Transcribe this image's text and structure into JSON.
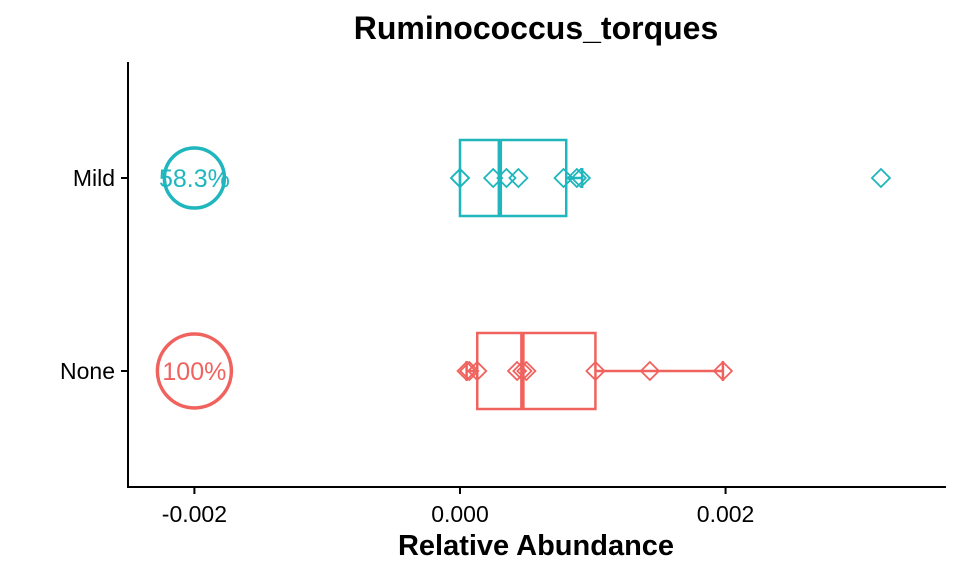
{
  "chart_data": {
    "type": "boxplot",
    "orientation": "horizontal",
    "title": "Ruminococcus_torques",
    "xlabel": "Relative Abundance",
    "ylabel": "",
    "xlim": [
      -0.0025,
      0.00366
    ],
    "x_ticks": [
      -0.002,
      0.0,
      0.002
    ],
    "x_tick_labels": [
      "-0.002",
      "0.000",
      "0.002"
    ],
    "categories": [
      "Mild",
      "None"
    ],
    "grid": false,
    "legend": "none",
    "series": [
      {
        "name": "Mild",
        "color": "#1fb6be",
        "box": {
          "q1": 0.0,
          "median": 0.0003,
          "q3": 0.0008,
          "whisker_low": 0.0,
          "whisker_high": 0.00092
        },
        "points": [
          0.0,
          0.0,
          0.00025,
          0.00035,
          0.00044,
          0.00078,
          0.00088,
          0.00091,
          0.00317
        ],
        "prevalence_label": "58.3%"
      },
      {
        "name": "None",
        "color": "#f0625e",
        "box": {
          "q1": 0.00013,
          "median": 0.00047,
          "q3": 0.00102,
          "whisker_low": 5e-05,
          "whisker_high": 0.00198
        },
        "points": [
          5e-05,
          7e-05,
          0.00013,
          0.00043,
          0.00047,
          0.0005,
          0.00102,
          0.00143,
          0.00198
        ],
        "prevalence_label": "100%"
      }
    ],
    "prevalence_marker_x": -0.002
  }
}
